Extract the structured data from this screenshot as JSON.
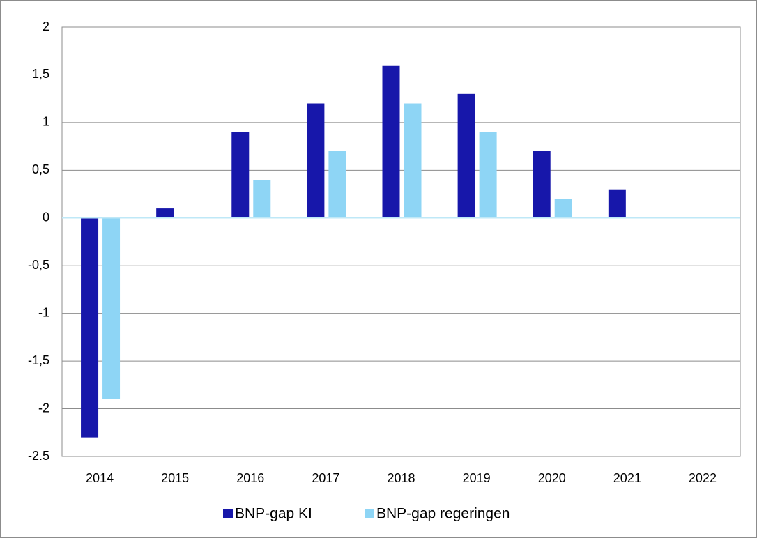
{
  "chart_data": {
    "type": "bar",
    "categories": [
      "2014",
      "2015",
      "2016",
      "2017",
      "2018",
      "2019",
      "2020",
      "2021",
      "2022"
    ],
    "series": [
      {
        "name": "BNP-gap KI",
        "color": "#1717aa",
        "values": [
          -2.3,
          0.1,
          0.9,
          1.2,
          1.6,
          1.3,
          0.7,
          0.3,
          0
        ]
      },
      {
        "name": "BNP-gap regeringen",
        "color": "#8ed5f5",
        "values": [
          -1.9,
          0,
          0.4,
          0.7,
          1.2,
          0.9,
          0.2,
          0,
          0
        ]
      }
    ],
    "ylim": [
      -2.5,
      2
    ],
    "yticks": [
      -2.5,
      -2,
      {
        "value": -1.5,
        "label": "-1,5"
      },
      -1,
      {
        "value": -0.5,
        "label": "-0,5"
      },
      0,
      {
        "value": 0.5,
        "label": "0,5"
      },
      1,
      {
        "value": 1.5,
        "label": "1,5"
      },
      2
    ],
    "grid": true,
    "legend": "bottom"
  }
}
